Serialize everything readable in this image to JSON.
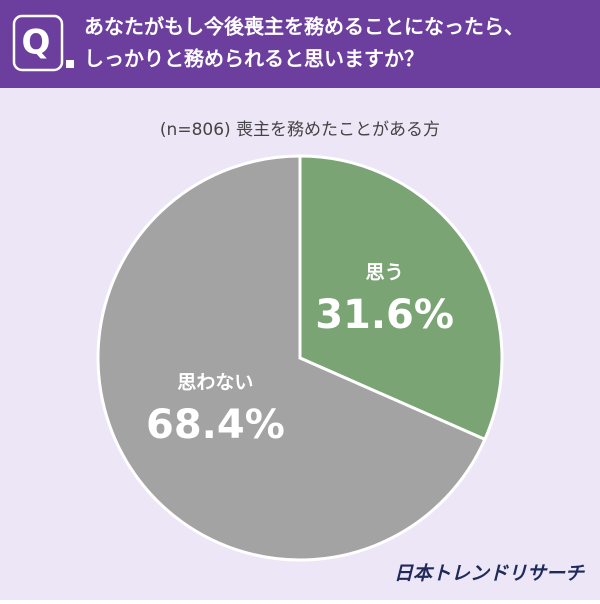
{
  "chart_data": {
    "type": "pie",
    "icon_text": "Q",
    "title": [
      "あなたがもし今後喪主を務めることになったら、",
      "しっかりと務められると思いますか？"
    ],
    "subtitle": "(n=806) 喪主を務めたことがある方",
    "categories": [
      "思う",
      "思わない"
    ],
    "values": [
      31.6,
      68.4
    ],
    "value_labels": [
      "31.6%",
      "68.4%"
    ],
    "colors": [
      "#7aa474",
      "#a3a3a3"
    ],
    "source": "日本トレンドリサーチ"
  }
}
